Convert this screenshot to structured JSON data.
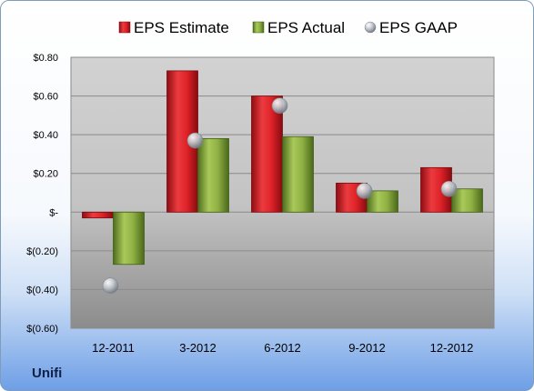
{
  "company": "Unifi",
  "chart_data": {
    "type": "bar",
    "categories": [
      "12-2011",
      "3-2012",
      "6-2012",
      "9-2012",
      "12-2012"
    ],
    "series": [
      {
        "name": "EPS Estimate",
        "type": "bar",
        "color": "#d4202a",
        "values": [
          -0.03,
          0.73,
          0.6,
          0.15,
          0.23
        ]
      },
      {
        "name": "EPS Actual",
        "type": "bar",
        "color": "#8aae3e",
        "values": [
          -0.27,
          0.38,
          0.39,
          0.11,
          0.12
        ]
      },
      {
        "name": "EPS GAAP",
        "type": "scatter",
        "color": "#b0b6bd",
        "values": [
          -0.38,
          0.37,
          0.55,
          0.11,
          0.12
        ]
      }
    ],
    "y_ticks": [
      {
        "value": 0.8,
        "label": "$0.80"
      },
      {
        "value": 0.6,
        "label": "$0.60"
      },
      {
        "value": 0.4,
        "label": "$0.40"
      },
      {
        "value": 0.2,
        "label": "$0.20"
      },
      {
        "value": 0,
        "label": "$-"
      },
      {
        "value": -0.2,
        "label": "$(0.20)"
      },
      {
        "value": -0.4,
        "label": "$(0.40)"
      },
      {
        "value": -0.6,
        "label": "$(0.60)"
      }
    ],
    "ylim": [
      -0.6,
      0.8
    ],
    "grid": true,
    "legend_position": "top"
  }
}
